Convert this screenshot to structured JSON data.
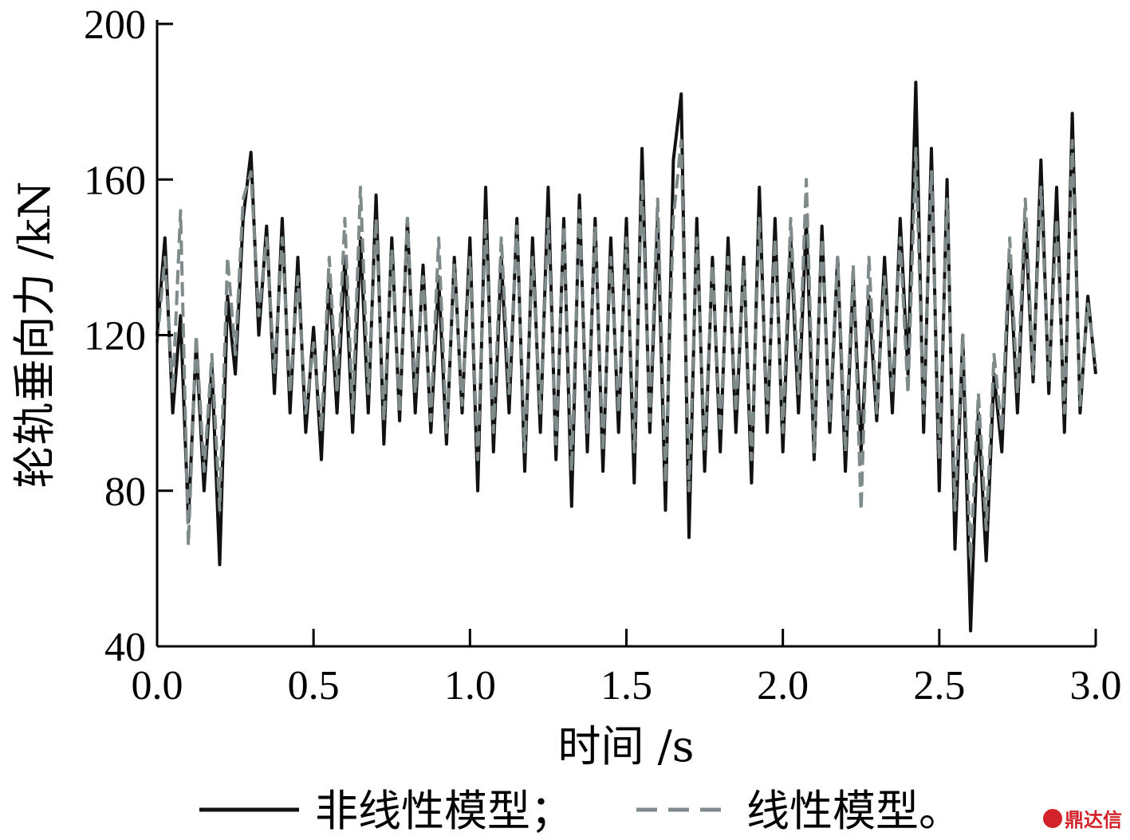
{
  "chart_data": {
    "type": "line",
    "title": "",
    "xlabel": "时间 /s",
    "ylabel": "轮轨垂向力 /kN",
    "xlim": [
      0,
      3.0
    ],
    "ylim": [
      40,
      200
    ],
    "x_ticks": [
      "0.0",
      "0.5",
      "1.0",
      "1.5",
      "2.0",
      "2.5",
      "3.0"
    ],
    "y_ticks": [
      "40",
      "80",
      "120",
      "160",
      "200"
    ],
    "grid": false,
    "legend_position": "bottom",
    "t_start": 0,
    "t_step": 0.025,
    "series": [
      {
        "name": "非线性模型；",
        "color": "#111111",
        "style": "solid",
        "values": [
          120,
          145,
          100,
          125,
          72,
          118,
          80,
          112,
          61,
          130,
          110,
          150,
          167,
          120,
          148,
          105,
          150,
          100,
          140,
          95,
          122,
          88,
          135,
          100,
          140,
          95,
          145,
          100,
          156,
          92,
          145,
          98,
          150,
          100,
          138,
          95,
          135,
          92,
          140,
          100,
          145,
          80,
          158,
          90,
          140,
          100,
          150,
          85,
          145,
          95,
          158,
          88,
          150,
          76,
          156,
          90,
          150,
          85,
          145,
          95,
          150,
          82,
          168,
          95,
          150,
          75,
          165,
          182,
          68,
          150,
          85,
          140,
          90,
          145,
          95,
          140,
          82,
          158,
          95,
          150,
          90,
          145,
          100,
          150,
          88,
          148,
          95,
          140,
          85,
          135,
          90,
          130,
          98,
          140,
          100,
          150,
          110,
          185,
          95,
          168,
          80,
          160,
          65,
          120,
          44,
          100,
          62,
          110,
          90,
          140,
          100,
          150,
          108,
          165,
          105,
          158,
          95,
          177,
          100,
          130,
          110
        ]
      },
      {
        "name": "线性模型。",
        "color": "#7f8a8a",
        "style": "dashed",
        "values": [
          118,
          140,
          105,
          152,
          66,
          120,
          85,
          115,
          75,
          140,
          115,
          155,
          162,
          125,
          145,
          110,
          145,
          105,
          135,
          100,
          118,
          95,
          140,
          105,
          150,
          100,
          158,
          105,
          150,
          98,
          142,
          100,
          150,
          105,
          135,
          98,
          145,
          95,
          138,
          102,
          140,
          88,
          150,
          95,
          145,
          105,
          148,
          90,
          140,
          100,
          150,
          92,
          148,
          85,
          152,
          95,
          148,
          90,
          140,
          100,
          145,
          90,
          160,
          98,
          155,
          82,
          150,
          170,
          80,
          145,
          90,
          138,
          95,
          140,
          100,
          138,
          88,
          150,
          100,
          145,
          95,
          150,
          105,
          160,
          90,
          145,
          98,
          140,
          90,
          138,
          75,
          140,
          100,
          135,
          105,
          145,
          105,
          168,
          100,
          162,
          88,
          155,
          75,
          120,
          62,
          105,
          70,
          115,
          95,
          145,
          105,
          155,
          110,
          158,
          108,
          150,
          100,
          170,
          102,
          128,
          112
        ]
      }
    ]
  },
  "watermark": "鼎达信"
}
